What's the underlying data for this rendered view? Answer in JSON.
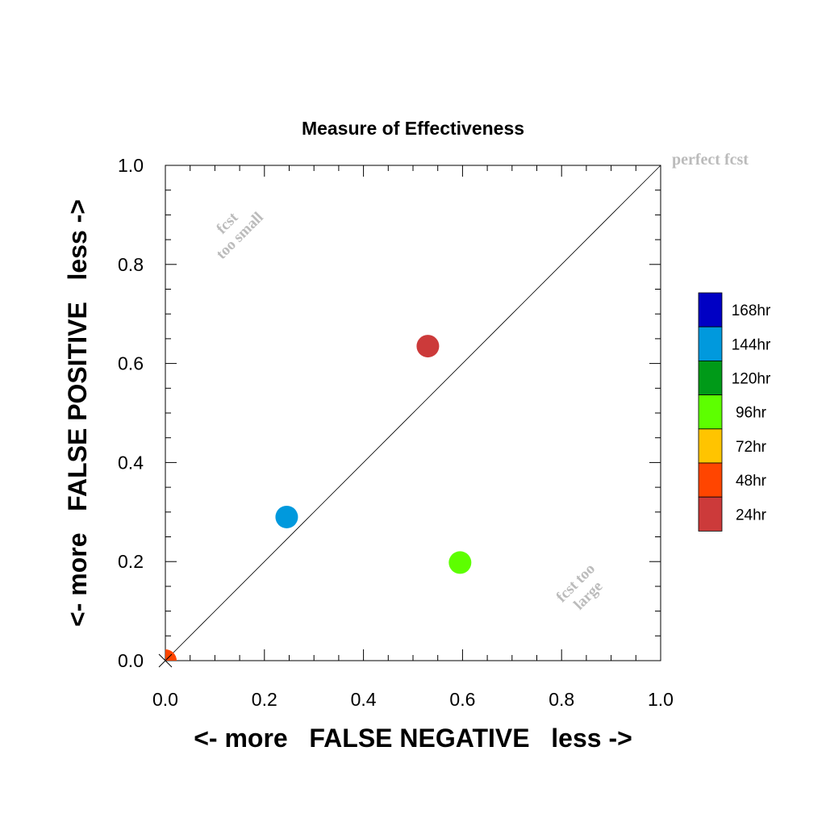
{
  "chart_data": {
    "type": "scatter",
    "title": "Measure of Effectiveness",
    "xlabel": "<- more   FALSE NEGATIVE   less ->",
    "ylabel": "<- more   FALSE POSITIVE   less ->",
    "xlim": [
      0,
      1
    ],
    "ylim": [
      0,
      1
    ],
    "x_ticks": [
      "0.0",
      "0.2",
      "0.4",
      "0.6",
      "0.8",
      "1.0"
    ],
    "y_ticks": [
      "0.0",
      "0.2",
      "0.4",
      "0.6",
      "0.8",
      "1.0"
    ],
    "grid": false,
    "legend_position": "right",
    "annotations": {
      "perfect": "perfect fcst",
      "too_small_line1": "fcst",
      "too_small_line2": "too small",
      "too_large_line1": "fcst too",
      "too_large_line2": "large"
    },
    "legend": [
      {
        "label": "168hr",
        "color": "#0000c4"
      },
      {
        "label": "144hr",
        "color": "#0099dd"
      },
      {
        "label": "120hr",
        "color": "#009a18"
      },
      {
        "label": "96hr",
        "color": "#5dff00"
      },
      {
        "label": "72hr",
        "color": "#ffc400"
      },
      {
        "label": "48hr",
        "color": "#ff4500"
      },
      {
        "label": "24hr",
        "color": "#cc3a3a"
      }
    ],
    "points": [
      {
        "series": "24hr",
        "x": 0.53,
        "y": 0.635,
        "color": "#cc3a3a"
      },
      {
        "series": "144hr",
        "x": 0.245,
        "y": 0.29,
        "color": "#0099dd"
      },
      {
        "series": "96hr",
        "x": 0.595,
        "y": 0.198,
        "color": "#5dff00"
      },
      {
        "series": "48hr",
        "x": 0.0,
        "y": 0.0,
        "color": "#ff4500"
      }
    ]
  }
}
